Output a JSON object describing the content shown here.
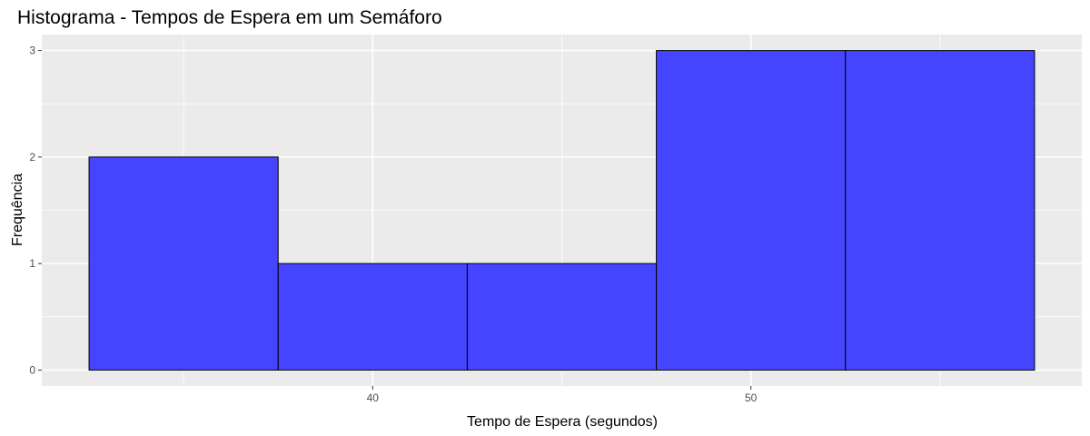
{
  "chart_data": {
    "type": "bar",
    "title": "Histograma - Tempos de Espera em um Semáforo",
    "xlabel": "Tempo de Espera (segundos)",
    "ylabel": "Frequência",
    "bins": [
      {
        "start": 32.5,
        "end": 37.5,
        "count": 2
      },
      {
        "start": 37.5,
        "end": 42.5,
        "count": 1
      },
      {
        "start": 42.5,
        "end": 47.5,
        "count": 1
      },
      {
        "start": 47.5,
        "end": 52.5,
        "count": 3
      },
      {
        "start": 52.5,
        "end": 57.5,
        "count": 3
      }
    ],
    "xlim": [
      31.25,
      58.75
    ],
    "ylim": [
      -0.15,
      3.15
    ],
    "x_ticks": [
      40,
      50
    ],
    "x_minor_ticks": [
      35,
      45,
      55
    ],
    "y_ticks": [
      0,
      1,
      2,
      3
    ],
    "y_minor_ticks": [
      0.5,
      1.5,
      2.5
    ],
    "grid": true,
    "colors": {
      "bar_fill": "#4545FF",
      "bar_stroke": "#000000",
      "panel_background": "#EBEBEB",
      "grid": "#FFFFFF"
    }
  }
}
